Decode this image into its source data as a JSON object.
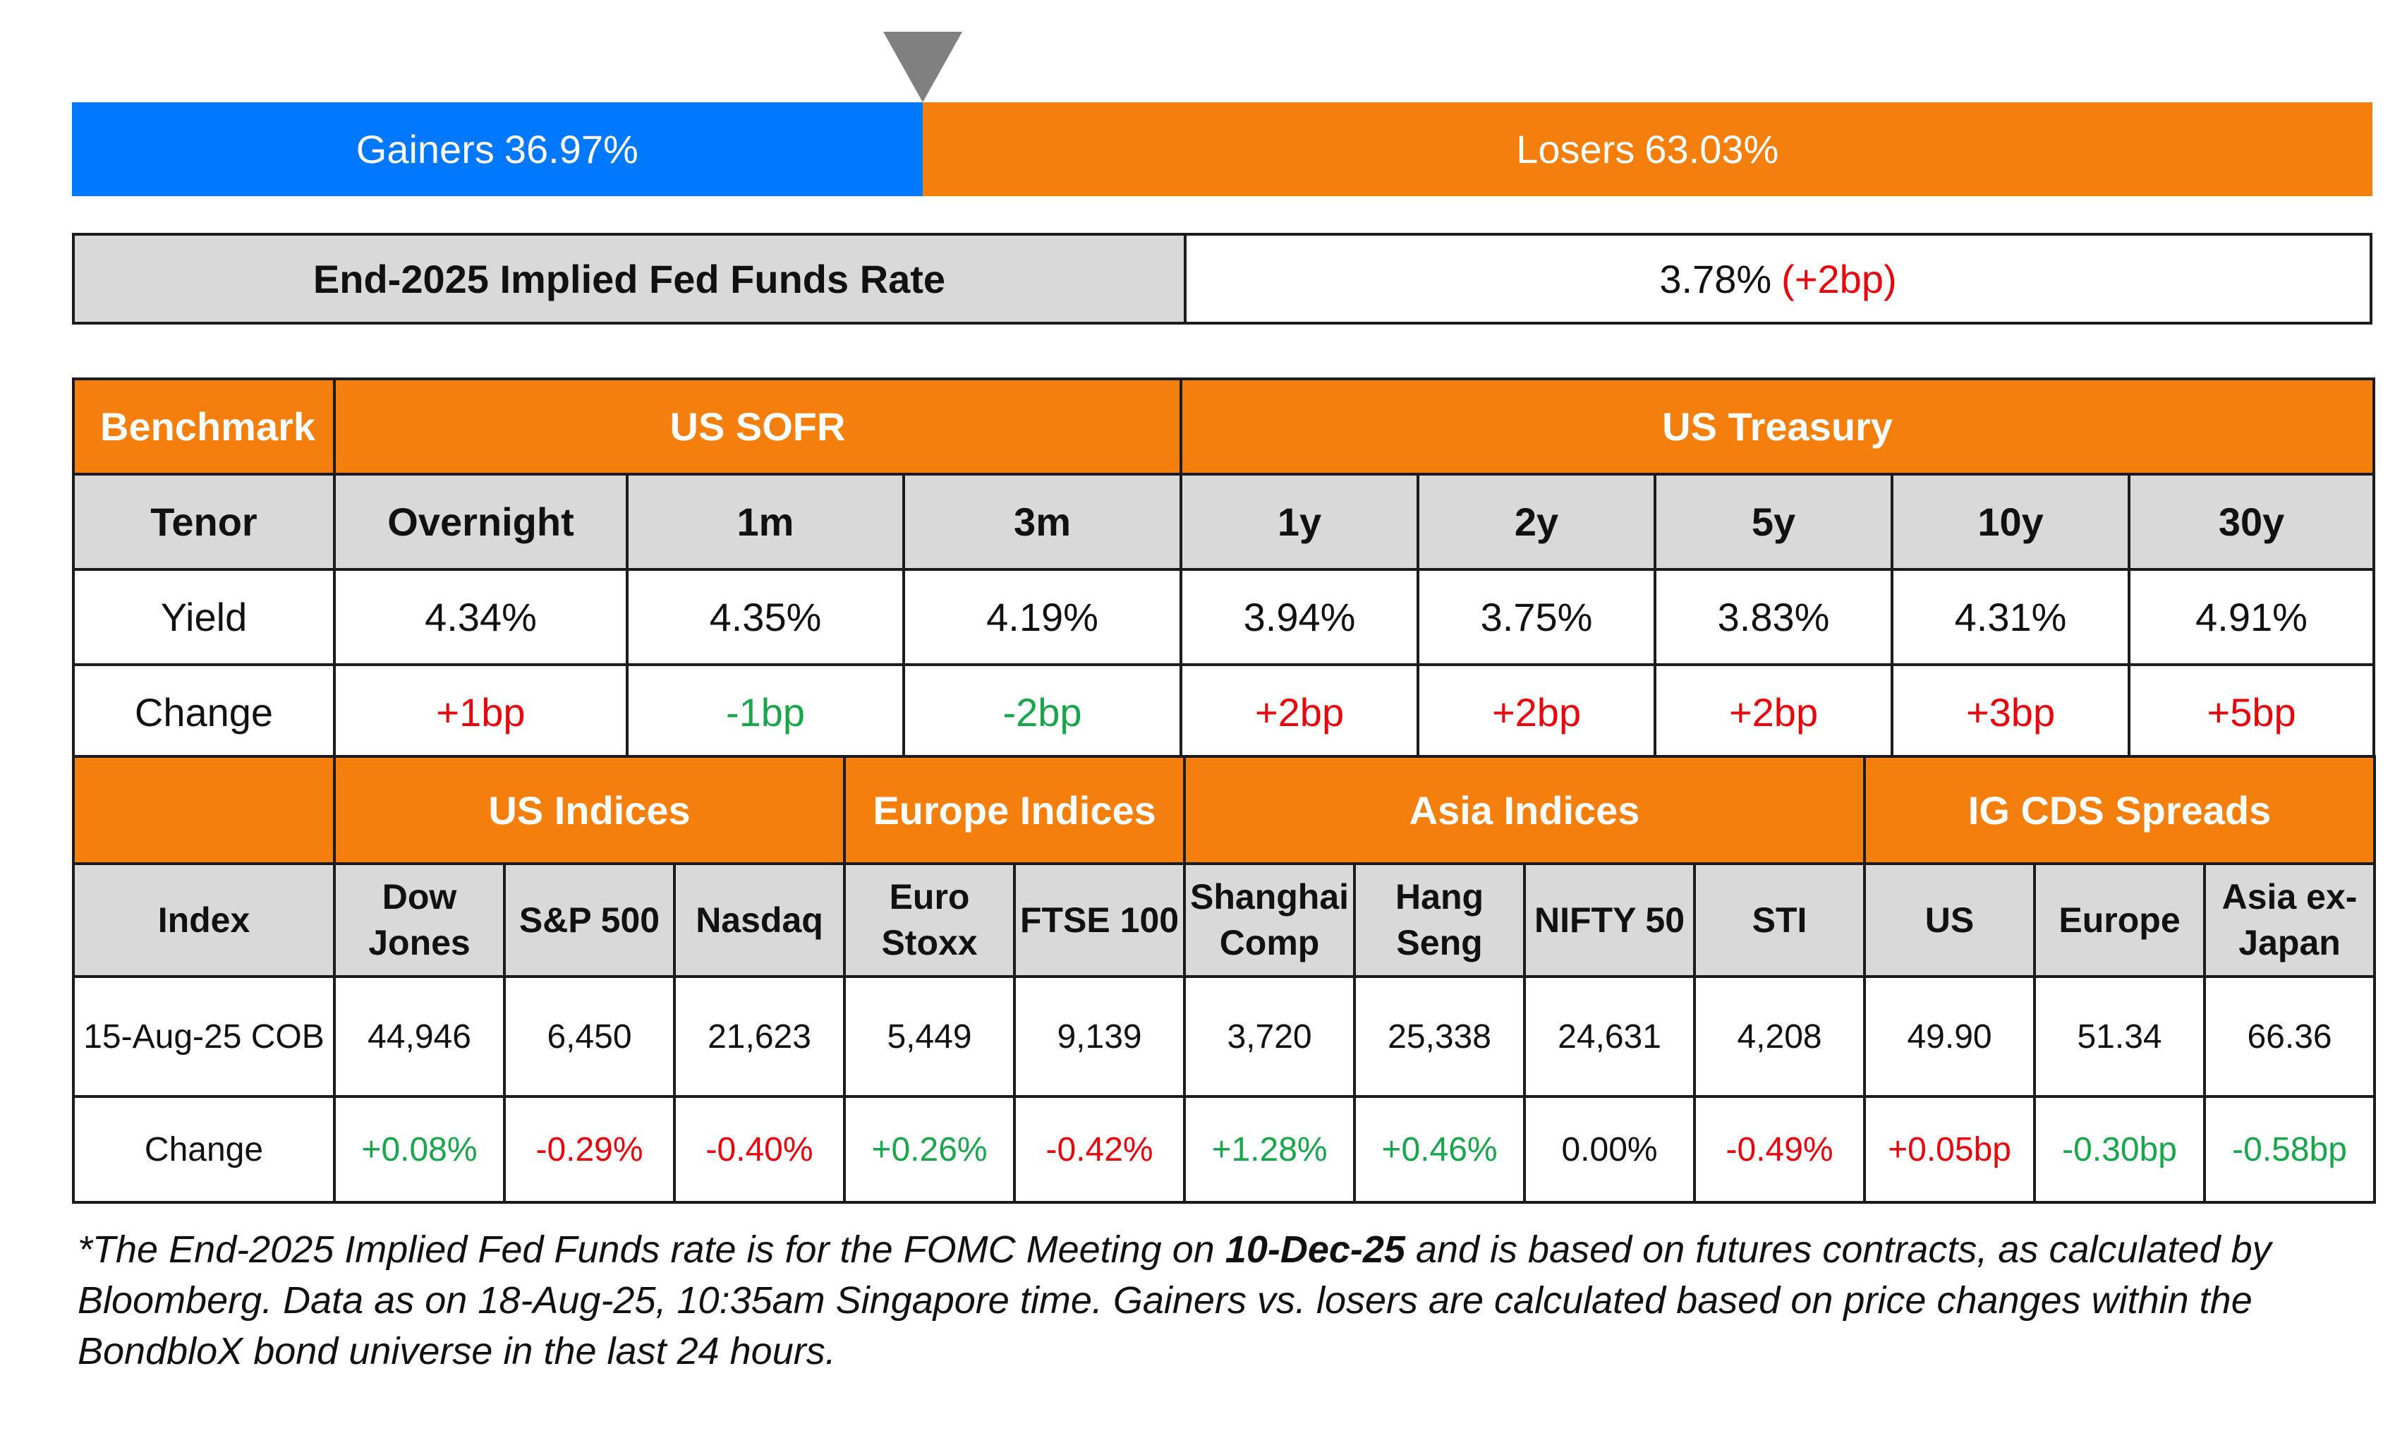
{
  "sentiment": {
    "gainers_label": "Gainers",
    "gainers_value": "36.97%",
    "gainers_fraction": 0.3697,
    "losers_label": "Losers",
    "losers_value": "63.03%",
    "losers_fraction": 0.6303,
    "gainers_color": "#0078ff",
    "losers_color": "#f47f0c",
    "pointer_icon": "triangle-down-icon"
  },
  "fed": {
    "label": "End-2025 Implied Fed Funds Rate",
    "value": "3.78%",
    "change": "(+2bp)"
  },
  "rates": {
    "header": {
      "benchmark": "Benchmark",
      "sofr": "US SOFR",
      "treasury": "US Treasury"
    },
    "tenor_label": "Tenor",
    "tenors": [
      "Overnight",
      "1m",
      "3m",
      "1y",
      "2y",
      "5y",
      "10y",
      "30y"
    ],
    "yield_label": "Yield",
    "yields": [
      "4.34%",
      "4.35%",
      "4.19%",
      "3.94%",
      "3.75%",
      "3.83%",
      "4.31%",
      "4.91%"
    ],
    "change_label": "Change",
    "changes": [
      {
        "text": "+1bp",
        "dir": "up"
      },
      {
        "text": "-1bp",
        "dir": "down"
      },
      {
        "text": "-2bp",
        "dir": "down"
      },
      {
        "text": "+2bp",
        "dir": "up"
      },
      {
        "text": "+2bp",
        "dir": "up"
      },
      {
        "text": "+2bp",
        "dir": "up"
      },
      {
        "text": "+3bp",
        "dir": "up"
      },
      {
        "text": "+5bp",
        "dir": "up"
      }
    ]
  },
  "indices": {
    "groups": [
      "US Indices",
      "Europe Indices",
      "Asia Indices",
      "IG CDS Spreads"
    ],
    "index_label": "Index",
    "names": [
      [
        "Dow",
        "Jones"
      ],
      [
        "S&P 500"
      ],
      [
        "Nasdaq"
      ],
      [
        "Euro",
        "Stoxx"
      ],
      [
        "FTSE 100"
      ],
      [
        "Shanghai",
        "Comp"
      ],
      [
        "Hang",
        "Seng"
      ],
      [
        "NIFTY 50"
      ],
      [
        "STI"
      ],
      [
        "US"
      ],
      [
        "Europe"
      ],
      [
        "Asia ex-",
        "Japan"
      ]
    ],
    "date_label": "15-Aug-25 COB",
    "values": [
      "44,946",
      "6,450",
      "21,623",
      "5,449",
      "9,139",
      "3,720",
      "25,338",
      "24,631",
      "4,208",
      "49.90",
      "51.34",
      "66.36"
    ],
    "change_label": "Change",
    "changes": [
      {
        "text": "+0.08%",
        "dir": "down"
      },
      {
        "text": "-0.29%",
        "dir": "up"
      },
      {
        "text": "-0.40%",
        "dir": "up"
      },
      {
        "text": "+0.26%",
        "dir": "down"
      },
      {
        "text": "-0.42%",
        "dir": "up"
      },
      {
        "text": "+1.28%",
        "dir": "down"
      },
      {
        "text": "+0.46%",
        "dir": "down"
      },
      {
        "text": "0.00%",
        "dir": "flat"
      },
      {
        "text": "-0.49%",
        "dir": "up"
      },
      {
        "text": "+0.05bp",
        "dir": "up"
      },
      {
        "text": "-0.30bp",
        "dir": "down"
      },
      {
        "text": "-0.58bp",
        "dir": "down"
      }
    ]
  },
  "footnote": {
    "part1": "*The End-2025 Implied Fed Funds rate is for the FOMC Meeting on ",
    "bold": "10-Dec-25",
    "part2": " and is based on futures contracts, as calculated by Bloomberg. Data as on 18-Aug-25, 10:35am Singapore time. Gainers vs. losers are calculated based on price changes within the BondbloX bond universe in the last 24 hours."
  },
  "colors": {
    "red": "#e8060c",
    "green": "#17a64a",
    "orange": "#f47f0c",
    "grey": "#d9d9d9"
  }
}
